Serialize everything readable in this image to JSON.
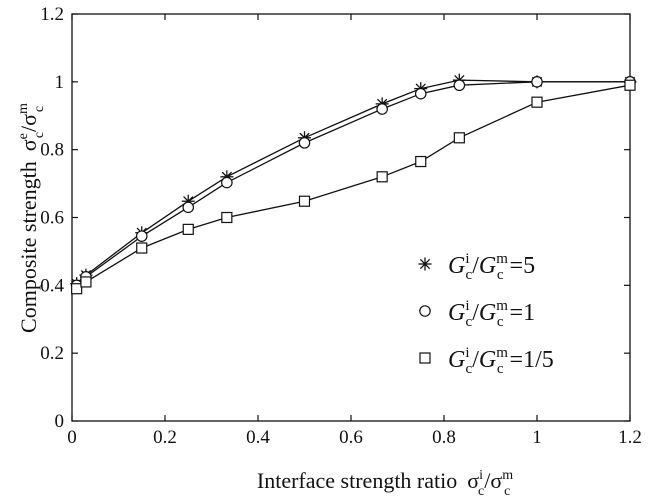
{
  "chart_data": {
    "type": "line",
    "title": "",
    "xlabel": {
      "text": "Interface strength ratio",
      "symbol": "σ",
      "sub": "c",
      "sup": "i",
      "over": "σ",
      "over_sub": "c",
      "over_sup": "m"
    },
    "ylabel": {
      "text": "Composite strength",
      "symbol": "σ",
      "sub": "c",
      "sup": "e",
      "over": "σ",
      "over_sub": "c",
      "over_sup": "m"
    },
    "xlim": [
      0,
      1.2
    ],
    "ylim": [
      0,
      1.2
    ],
    "xticks": [
      "0",
      "0.2",
      "0.4",
      "0.6",
      "0.8",
      "1",
      "1.2"
    ],
    "yticks": [
      "0",
      "0.2",
      "0.4",
      "0.6",
      "0.8",
      "1",
      "1.2"
    ],
    "xtick_values": [
      0,
      0.2,
      0.4,
      0.6,
      0.8,
      1.0,
      1.2
    ],
    "ytick_values": [
      0,
      0.2,
      0.4,
      0.6,
      0.8,
      1.0,
      1.2
    ],
    "grid": false,
    "legend_position": "lower-right",
    "series": [
      {
        "name": "G_c^i/G_c^m =5",
        "legend": {
          "sym": "G",
          "sub": "c",
          "sup": "i",
          "sym2": "G",
          "sub2": "c",
          "sup2": "m",
          "rest": " =5"
        },
        "marker": "asterisk",
        "x": [
          0.01,
          0.03,
          0.15,
          0.25,
          0.333,
          0.5,
          0.667,
          0.75,
          0.833,
          1.0,
          1.2
        ],
        "y": [
          0.405,
          0.43,
          0.555,
          0.648,
          0.72,
          0.835,
          0.935,
          0.98,
          1.005,
          1.0,
          1.0
        ]
      },
      {
        "name": "G_c^i/G_c^m =1",
        "legend": {
          "sym": "G",
          "sub": "c",
          "sup": "i",
          "sym2": "G",
          "sub2": "c",
          "sup2": "m",
          "rest": " =1"
        },
        "marker": "circle",
        "x": [
          0.01,
          0.03,
          0.15,
          0.25,
          0.333,
          0.5,
          0.667,
          0.75,
          0.833,
          1.0,
          1.2
        ],
        "y": [
          0.4,
          0.425,
          0.545,
          0.63,
          0.703,
          0.82,
          0.92,
          0.965,
          0.99,
          1.0,
          1.0
        ]
      },
      {
        "name": "G_c^i/G_c^m =1/5",
        "legend": {
          "sym": "G",
          "sub": "c",
          "sup": "i",
          "sym2": "G",
          "sub2": "c",
          "sup2": "m",
          "rest": " =1/5"
        },
        "marker": "square",
        "x": [
          0.01,
          0.03,
          0.15,
          0.25,
          0.333,
          0.5,
          0.667,
          0.75,
          0.833,
          1.0,
          1.2
        ],
        "y": [
          0.39,
          0.41,
          0.51,
          0.565,
          0.6,
          0.648,
          0.72,
          0.765,
          0.835,
          0.94,
          0.99
        ]
      }
    ]
  }
}
